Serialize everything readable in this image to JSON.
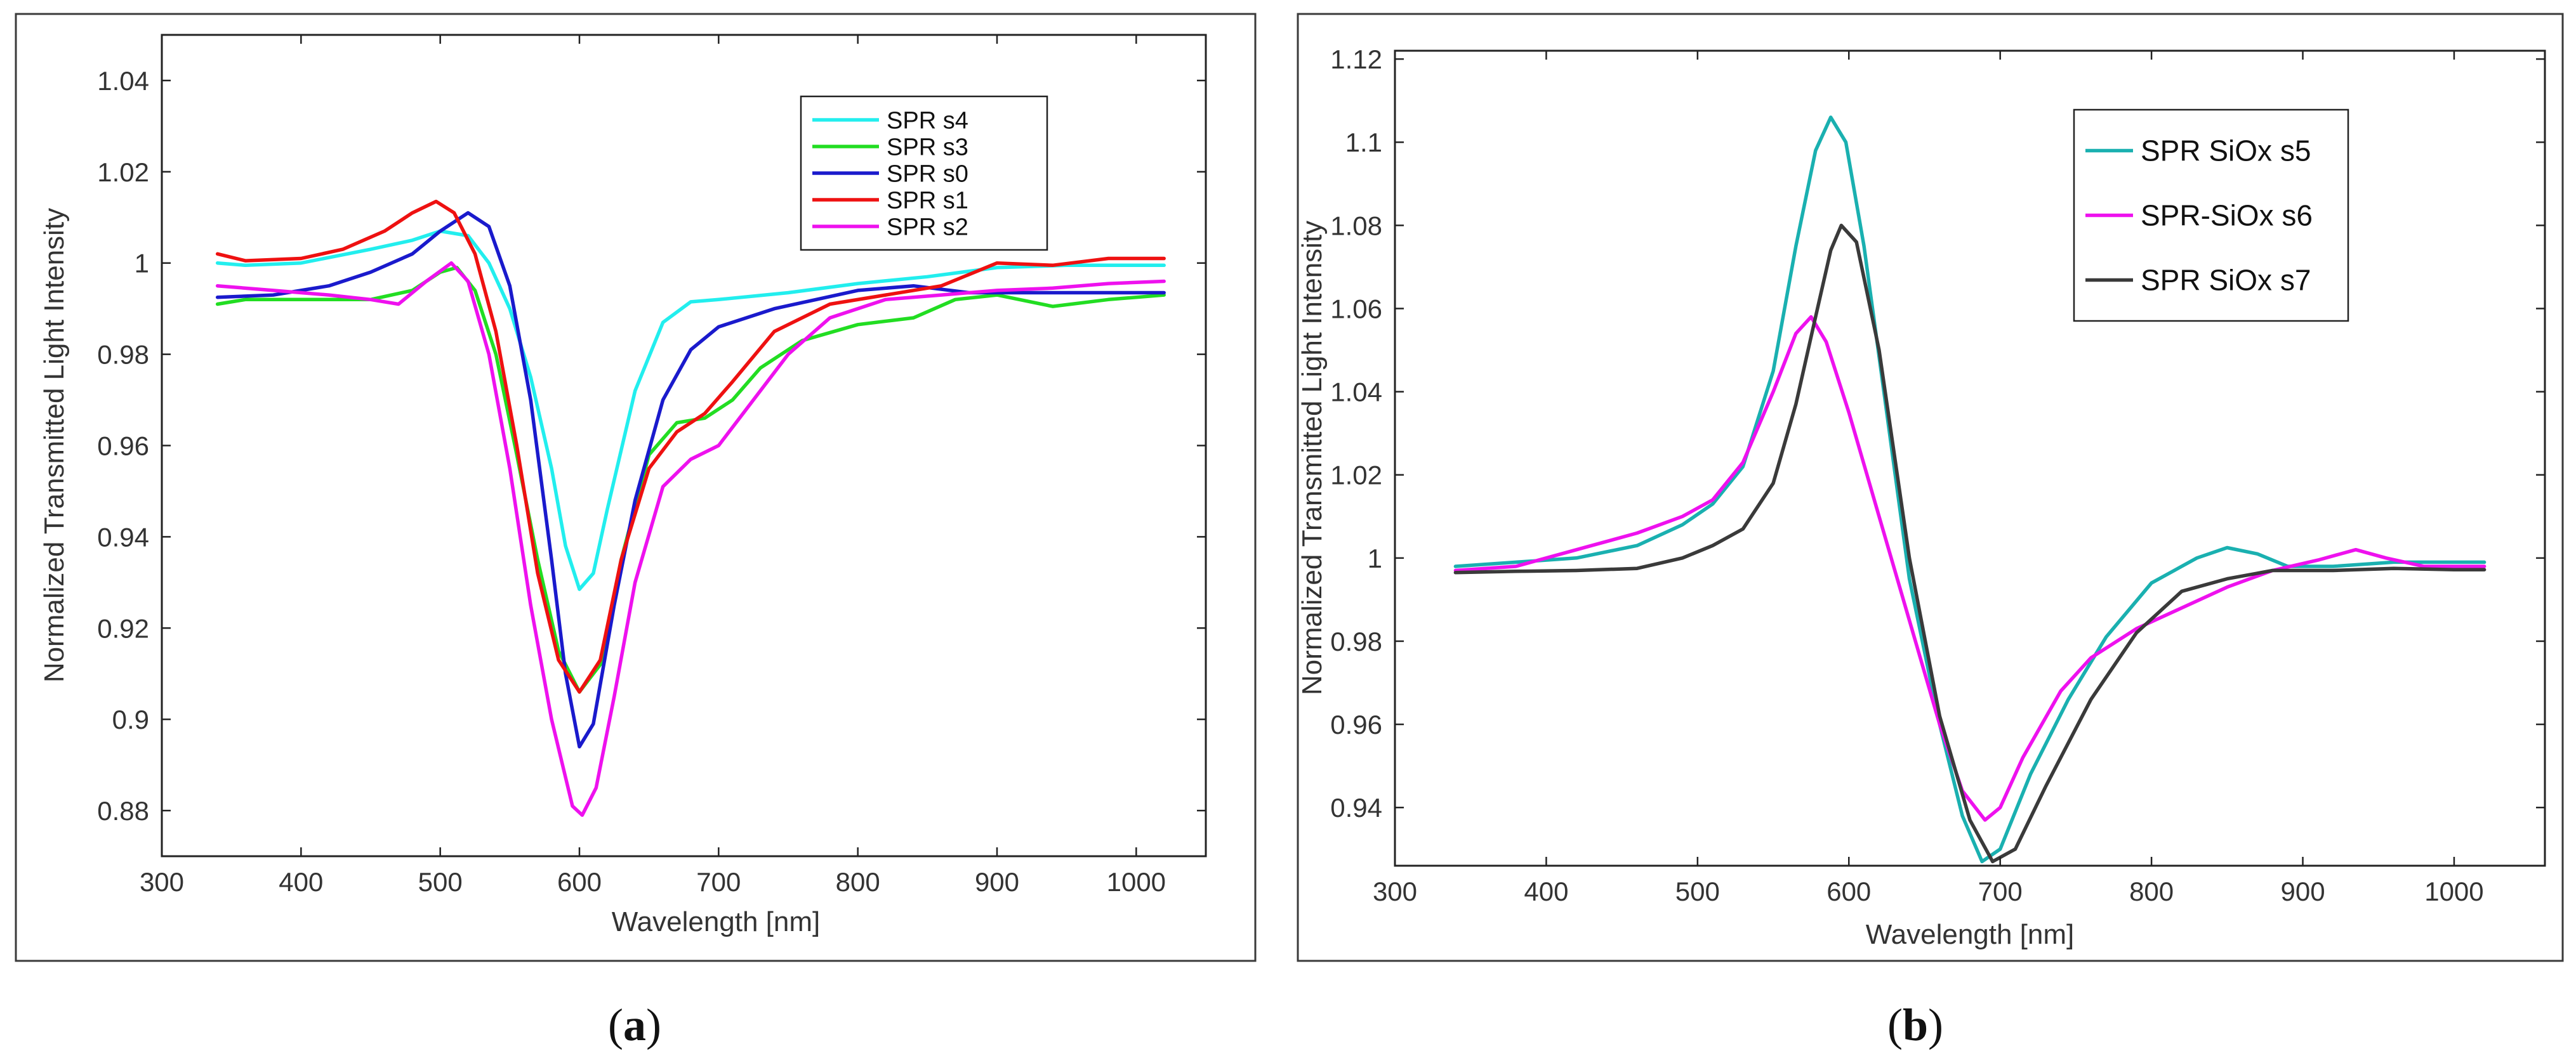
{
  "chart_data": [
    {
      "type": "line",
      "panel": "a",
      "caption_open": "(",
      "caption_letter": "a",
      "caption_close": ")",
      "xlabel": "Wavelength [nm]",
      "ylabel": "Normalized Transmitted Light Intensity",
      "xlim": [
        300,
        1050
      ],
      "ylim": [
        0.87,
        1.05
      ],
      "xticks": [
        300,
        400,
        500,
        600,
        700,
        800,
        900,
        1000
      ],
      "yticks": [
        0.88,
        0.9,
        0.92,
        0.94,
        0.96,
        0.98,
        1,
        1.02,
        1.04
      ],
      "xtick_labels": [
        "300",
        "400",
        "500",
        "600",
        "700",
        "800",
        "900",
        "1000"
      ],
      "ytick_labels": [
        "0.88",
        "0.9",
        "0.92",
        "0.94",
        "0.96",
        "0.98",
        "1",
        "1.02",
        "1.04"
      ],
      "grid": true,
      "legend_position": "top-right",
      "series": [
        {
          "name": "SPR s4",
          "color": "#22eeee",
          "points": [
            [
              340,
              1.0
            ],
            [
              360,
              0.9995
            ],
            [
              400,
              1.0
            ],
            [
              450,
              1.003
            ],
            [
              480,
              1.005
            ],
            [
              500,
              1.007
            ],
            [
              520,
              1.006
            ],
            [
              535,
              1.0
            ],
            [
              550,
              0.99
            ],
            [
              565,
              0.975
            ],
            [
              580,
              0.955
            ],
            [
              590,
              0.938
            ],
            [
              600,
              0.9285
            ],
            [
              610,
              0.932
            ],
            [
              620,
              0.946
            ],
            [
              640,
              0.972
            ],
            [
              660,
              0.987
            ],
            [
              680,
              0.9915
            ],
            [
              700,
              0.992
            ],
            [
              750,
              0.9935
            ],
            [
              800,
              0.9955
            ],
            [
              850,
              0.997
            ],
            [
              900,
              0.999
            ],
            [
              950,
              0.9995
            ],
            [
              1000,
              0.9995
            ],
            [
              1020,
              0.9995
            ]
          ]
        },
        {
          "name": "SPR s3",
          "color": "#22dd22",
          "points": [
            [
              340,
              0.991
            ],
            [
              360,
              0.992
            ],
            [
              400,
              0.992
            ],
            [
              450,
              0.992
            ],
            [
              480,
              0.994
            ],
            [
              500,
              0.998
            ],
            [
              512,
              0.999
            ],
            [
              525,
              0.994
            ],
            [
              540,
              0.98
            ],
            [
              555,
              0.958
            ],
            [
              570,
              0.935
            ],
            [
              585,
              0.915
            ],
            [
              600,
              0.906
            ],
            [
              615,
              0.912
            ],
            [
              630,
              0.935
            ],
            [
              650,
              0.958
            ],
            [
              670,
              0.965
            ],
            [
              690,
              0.966
            ],
            [
              710,
              0.97
            ],
            [
              730,
              0.977
            ],
            [
              760,
              0.983
            ],
            [
              800,
              0.9865
            ],
            [
              840,
              0.988
            ],
            [
              870,
              0.992
            ],
            [
              900,
              0.993
            ],
            [
              940,
              0.9905
            ],
            [
              980,
              0.992
            ],
            [
              1020,
              0.993
            ]
          ]
        },
        {
          "name": "SPR s0",
          "color": "#1a1acc",
          "points": [
            [
              340,
              0.9925
            ],
            [
              380,
              0.993
            ],
            [
              420,
              0.995
            ],
            [
              450,
              0.998
            ],
            [
              480,
              1.002
            ],
            [
              500,
              1.007
            ],
            [
              520,
              1.011
            ],
            [
              535,
              1.008
            ],
            [
              550,
              0.995
            ],
            [
              565,
              0.97
            ],
            [
              580,
              0.935
            ],
            [
              590,
              0.91
            ],
            [
              600,
              0.894
            ],
            [
              610,
              0.899
            ],
            [
              625,
              0.925
            ],
            [
              640,
              0.948
            ],
            [
              660,
              0.97
            ],
            [
              680,
              0.981
            ],
            [
              700,
              0.986
            ],
            [
              740,
              0.99
            ],
            [
              800,
              0.994
            ],
            [
              840,
              0.995
            ],
            [
              880,
              0.9935
            ],
            [
              920,
              0.9935
            ],
            [
              960,
              0.9935
            ],
            [
              1020,
              0.9935
            ]
          ]
        },
        {
          "name": "SPR s1",
          "color": "#ee1111",
          "points": [
            [
              340,
              1.002
            ],
            [
              360,
              1.0005
            ],
            [
              400,
              1.001
            ],
            [
              430,
              1.003
            ],
            [
              460,
              1.007
            ],
            [
              480,
              1.011
            ],
            [
              497,
              1.0135
            ],
            [
              510,
              1.011
            ],
            [
              525,
              1.002
            ],
            [
              540,
              0.985
            ],
            [
              555,
              0.96
            ],
            [
              570,
              0.932
            ],
            [
              585,
              0.913
            ],
            [
              600,
              0.906
            ],
            [
              615,
              0.913
            ],
            [
              630,
              0.935
            ],
            [
              650,
              0.955
            ],
            [
              670,
              0.963
            ],
            [
              690,
              0.967
            ],
            [
              710,
              0.974
            ],
            [
              740,
              0.985
            ],
            [
              780,
              0.991
            ],
            [
              820,
              0.993
            ],
            [
              860,
              0.995
            ],
            [
              900,
              1.0
            ],
            [
              940,
              0.9995
            ],
            [
              980,
              1.001
            ],
            [
              1020,
              1.001
            ]
          ]
        },
        {
          "name": "SPR s2",
          "color": "#ee11ee",
          "points": [
            [
              340,
              0.995
            ],
            [
              380,
              0.994
            ],
            [
              420,
              0.993
            ],
            [
              450,
              0.992
            ],
            [
              470,
              0.991
            ],
            [
              490,
              0.996
            ],
            [
              508,
              1.0
            ],
            [
              520,
              0.996
            ],
            [
              535,
              0.98
            ],
            [
              550,
              0.955
            ],
            [
              565,
              0.925
            ],
            [
              580,
              0.9
            ],
            [
              595,
              0.881
            ],
            [
              602,
              0.879
            ],
            [
              612,
              0.885
            ],
            [
              625,
              0.905
            ],
            [
              640,
              0.93
            ],
            [
              660,
              0.951
            ],
            [
              680,
              0.957
            ],
            [
              700,
              0.96
            ],
            [
              720,
              0.968
            ],
            [
              750,
              0.98
            ],
            [
              780,
              0.988
            ],
            [
              820,
              0.992
            ],
            [
              860,
              0.993
            ],
            [
              900,
              0.994
            ],
            [
              940,
              0.9945
            ],
            [
              980,
              0.9955
            ],
            [
              1020,
              0.996
            ]
          ]
        }
      ]
    },
    {
      "type": "line",
      "panel": "b",
      "caption_open": "(",
      "caption_letter": "b",
      "caption_close": ")",
      "xlabel": "Wavelength [nm]",
      "ylabel": "Normalized Transmitted Light Intensity",
      "xlim": [
        300,
        1060
      ],
      "ylim": [
        0.926,
        1.122
      ],
      "xticks": [
        300,
        400,
        500,
        600,
        700,
        800,
        900,
        1000
      ],
      "yticks": [
        0.94,
        0.96,
        0.98,
        1,
        1.02,
        1.04,
        1.06,
        1.08,
        1.1,
        1.12
      ],
      "xtick_labels": [
        "300",
        "400",
        "500",
        "600",
        "700",
        "800",
        "900",
        "1000"
      ],
      "ytick_labels": [
        "0.94",
        "0.96",
        "0.98",
        "1",
        "1.02",
        "1.04",
        "1.06",
        "1.08",
        "1.1",
        "1.12"
      ],
      "grid": true,
      "legend_position": "top-right",
      "series": [
        {
          "name": "SPR SiOx s5",
          "color": "#1ab0b0",
          "points": [
            [
              340,
              0.998
            ],
            [
              380,
              0.999
            ],
            [
              420,
              1.0
            ],
            [
              460,
              1.003
            ],
            [
              490,
              1.008
            ],
            [
              510,
              1.013
            ],
            [
              530,
              1.022
            ],
            [
              550,
              1.045
            ],
            [
              565,
              1.075
            ],
            [
              578,
              1.098
            ],
            [
              588,
              1.106
            ],
            [
              598,
              1.1
            ],
            [
              610,
              1.075
            ],
            [
              625,
              1.035
            ],
            [
              640,
              0.995
            ],
            [
              660,
              0.96
            ],
            [
              675,
              0.938
            ],
            [
              688,
              0.927
            ],
            [
              700,
              0.93
            ],
            [
              720,
              0.948
            ],
            [
              745,
              0.966
            ],
            [
              770,
              0.981
            ],
            [
              800,
              0.994
            ],
            [
              830,
              1.0
            ],
            [
              850,
              1.0025
            ],
            [
              870,
              1.001
            ],
            [
              890,
              0.998
            ],
            [
              920,
              0.998
            ],
            [
              960,
              0.999
            ],
            [
              1000,
              0.999
            ],
            [
              1020,
              0.999
            ]
          ]
        },
        {
          "name": "SPR-SiOx s6",
          "color": "#ee11ee",
          "points": [
            [
              340,
              0.997
            ],
            [
              380,
              0.998
            ],
            [
              400,
              1.0
            ],
            [
              430,
              1.003
            ],
            [
              460,
              1.006
            ],
            [
              490,
              1.01
            ],
            [
              510,
              1.014
            ],
            [
              530,
              1.023
            ],
            [
              550,
              1.04
            ],
            [
              565,
              1.054
            ],
            [
              575,
              1.058
            ],
            [
              585,
              1.052
            ],
            [
              600,
              1.035
            ],
            [
              620,
              1.01
            ],
            [
              640,
              0.985
            ],
            [
              660,
              0.96
            ],
            [
              675,
              0.944
            ],
            [
              690,
              0.937
            ],
            [
              700,
              0.94
            ],
            [
              715,
              0.952
            ],
            [
              740,
              0.968
            ],
            [
              760,
              0.976
            ],
            [
              790,
              0.983
            ],
            [
              820,
              0.988
            ],
            [
              850,
              0.993
            ],
            [
              880,
              0.997
            ],
            [
              910,
              0.9995
            ],
            [
              935,
              1.002
            ],
            [
              955,
              1.0
            ],
            [
              980,
              0.998
            ],
            [
              1020,
              0.998
            ]
          ]
        },
        {
          "name": "SPR SiOx s7",
          "color": "#3a3a3a",
          "points": [
            [
              340,
              0.9965
            ],
            [
              380,
              0.9968
            ],
            [
              420,
              0.997
            ],
            [
              460,
              0.9975
            ],
            [
              490,
              1.0
            ],
            [
              510,
              1.003
            ],
            [
              530,
              1.007
            ],
            [
              550,
              1.018
            ],
            [
              565,
              1.037
            ],
            [
              578,
              1.058
            ],
            [
              588,
              1.074
            ],
            [
              595,
              1.08
            ],
            [
              605,
              1.076
            ],
            [
              620,
              1.05
            ],
            [
              640,
              1.0
            ],
            [
              660,
              0.962
            ],
            [
              680,
              0.937
            ],
            [
              695,
              0.927
            ],
            [
              710,
              0.93
            ],
            [
              730,
              0.945
            ],
            [
              760,
              0.966
            ],
            [
              790,
              0.982
            ],
            [
              820,
              0.992
            ],
            [
              850,
              0.995
            ],
            [
              880,
              0.997
            ],
            [
              920,
              0.997
            ],
            [
              960,
              0.9975
            ],
            [
              1000,
              0.9972
            ],
            [
              1020,
              0.9972
            ]
          ]
        }
      ]
    }
  ]
}
